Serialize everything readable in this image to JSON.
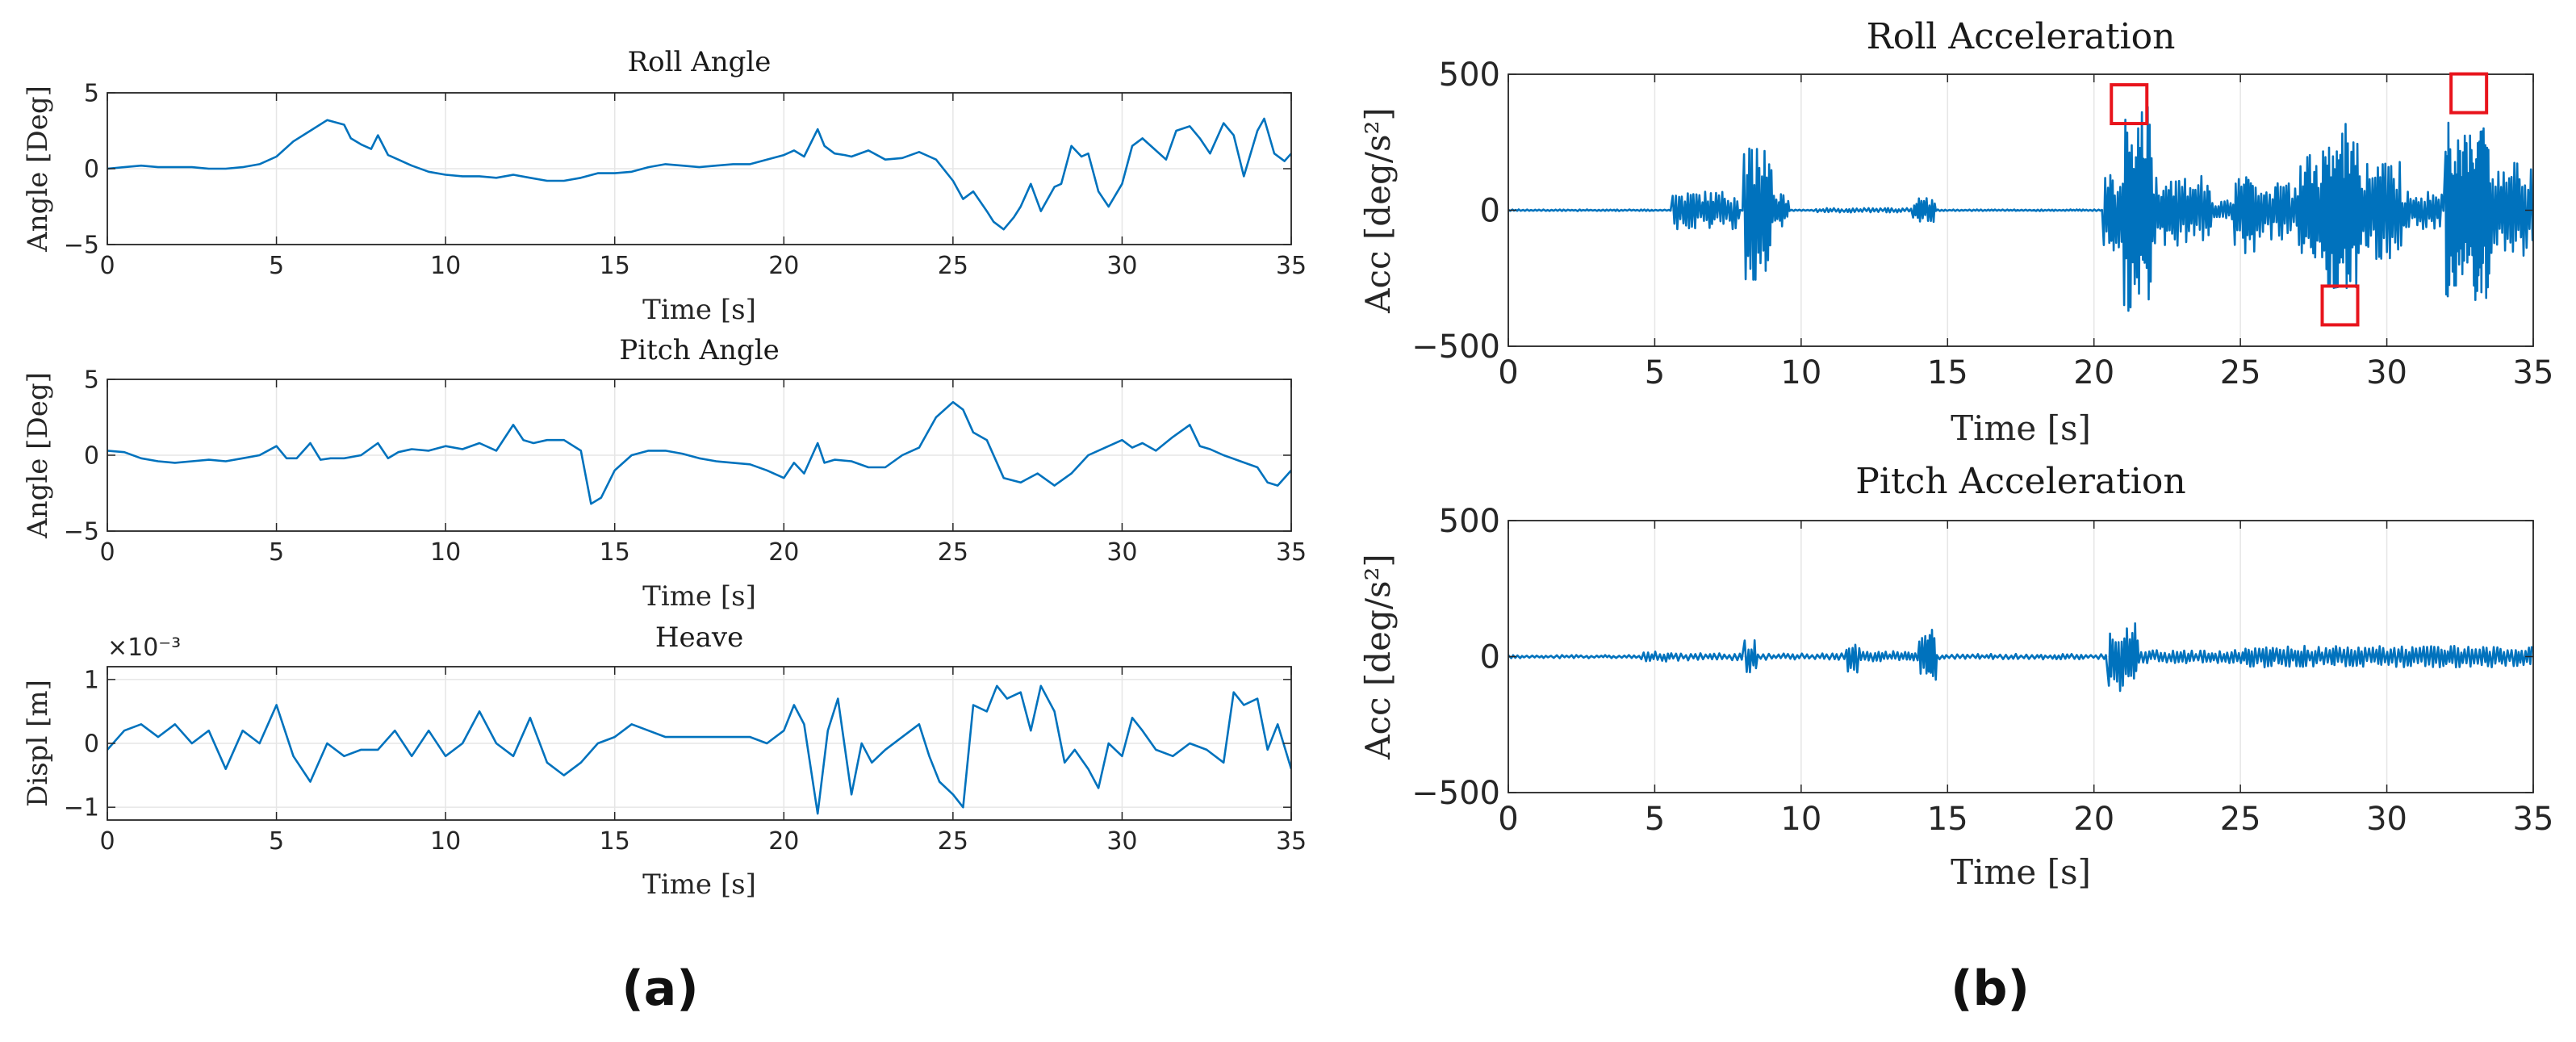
{
  "panel_labels": [
    "(a)",
    "(b)"
  ],
  "colors": {
    "line": "#0072BD",
    "axis": "#262626",
    "grid": "#e6e6e6",
    "marker": "#e8141c"
  },
  "chart_data": [
    {
      "id": "roll-angle",
      "type": "line",
      "title": "Roll Angle",
      "xlabel": "Time [s]",
      "ylabel": "Angle [Deg]",
      "xlim": [
        0,
        35
      ],
      "ylim": [
        -5,
        5
      ],
      "xticks": [
        0,
        5,
        10,
        15,
        20,
        25,
        30,
        35
      ],
      "yticks": [
        -5,
        0,
        5
      ],
      "grid": true,
      "series": [
        {
          "x": [
            0,
            0.5,
            1,
            1.5,
            2,
            2.5,
            3,
            3.5,
            4,
            4.5,
            5,
            5.5,
            6,
            6.5,
            7,
            7.2,
            7.5,
            7.8,
            8,
            8.3,
            8.6,
            9,
            9.5,
            10,
            10.5,
            11,
            11.5,
            12,
            12.5,
            13,
            13.5,
            14,
            14.5,
            15,
            15.5,
            16,
            16.5,
            17,
            17.5,
            18,
            18.5,
            19,
            19.5,
            20,
            20.3,
            20.6,
            21,
            21.2,
            21.5,
            21.8,
            22,
            22.5,
            23,
            23.5,
            24,
            24.5,
            25,
            25.3,
            25.6,
            26,
            26.2,
            26.5,
            26.8,
            27,
            27.3,
            27.6,
            28,
            28.2,
            28.5,
            28.8,
            29,
            29.3,
            29.6,
            30,
            30.3,
            30.6,
            31,
            31.3,
            31.6,
            32,
            32.3,
            32.6,
            33,
            33.3,
            33.6,
            34,
            34.2,
            34.5,
            34.8,
            35
          ],
          "y": [
            0,
            0.1,
            0.2,
            0.1,
            0.1,
            0.1,
            0.0,
            0.0,
            0.1,
            0.3,
            0.8,
            1.8,
            2.5,
            3.2,
            2.9,
            2.0,
            1.6,
            1.3,
            2.2,
            0.9,
            0.6,
            0.2,
            -0.2,
            -0.4,
            -0.5,
            -0.5,
            -0.6,
            -0.4,
            -0.6,
            -0.8,
            -0.8,
            -0.6,
            -0.3,
            -0.3,
            -0.2,
            0.1,
            0.3,
            0.2,
            0.1,
            0.2,
            0.3,
            0.3,
            0.6,
            0.9,
            1.2,
            0.8,
            2.6,
            1.5,
            1.0,
            0.9,
            0.8,
            1.2,
            0.6,
            0.7,
            1.1,
            0.6,
            -0.8,
            -2.0,
            -1.5,
            -2.8,
            -3.5,
            -4.0,
            -3.2,
            -2.5,
            -1.0,
            -2.8,
            -1.2,
            -1.0,
            1.5,
            0.8,
            1.0,
            -1.5,
            -2.5,
            -1.0,
            1.5,
            2.0,
            1.2,
            0.6,
            2.5,
            2.8,
            2.0,
            1.0,
            3.0,
            2.2,
            -0.5,
            2.5,
            3.3,
            1.0,
            0.5,
            1.0
          ]
        }
      ]
    },
    {
      "id": "pitch-angle",
      "type": "line",
      "title": "Pitch Angle",
      "xlabel": "Time [s]",
      "ylabel": "Angle [Deg]",
      "xlim": [
        0,
        35
      ],
      "ylim": [
        -5,
        5
      ],
      "xticks": [
        0,
        5,
        10,
        15,
        20,
        25,
        30,
        35
      ],
      "yticks": [
        -5,
        0,
        5
      ],
      "grid": true,
      "series": [
        {
          "x": [
            0,
            0.5,
            1,
            1.5,
            2,
            2.5,
            3,
            3.5,
            4,
            4.5,
            5,
            5.3,
            5.6,
            6,
            6.3,
            6.6,
            7,
            7.5,
            8,
            8.3,
            8.6,
            9,
            9.5,
            10,
            10.5,
            11,
            11.5,
            12,
            12.3,
            12.6,
            13,
            13.5,
            14,
            14.3,
            14.6,
            15,
            15.5,
            16,
            16.5,
            17,
            17.5,
            18,
            18.5,
            19,
            19.5,
            20,
            20.3,
            20.6,
            21,
            21.2,
            21.5,
            22,
            22.5,
            23,
            23.5,
            24,
            24.5,
            25,
            25.3,
            25.6,
            26,
            26.5,
            27,
            27.5,
            28,
            28.5,
            29,
            29.5,
            30,
            30.3,
            30.6,
            31,
            31.5,
            32,
            32.3,
            32.6,
            33,
            33.5,
            34,
            34.3,
            34.6,
            35
          ],
          "y": [
            0.3,
            0.2,
            -0.2,
            -0.4,
            -0.5,
            -0.4,
            -0.3,
            -0.4,
            -0.2,
            0.0,
            0.6,
            -0.2,
            -0.2,
            0.8,
            -0.3,
            -0.2,
            -0.2,
            0.0,
            0.8,
            -0.2,
            0.2,
            0.4,
            0.3,
            0.6,
            0.4,
            0.8,
            0.3,
            2.0,
            1.0,
            0.8,
            1.0,
            1.0,
            0.3,
            -3.2,
            -2.8,
            -1.0,
            0.0,
            0.3,
            0.3,
            0.1,
            -0.2,
            -0.4,
            -0.5,
            -0.6,
            -1.0,
            -1.5,
            -0.5,
            -1.2,
            0.8,
            -0.5,
            -0.3,
            -0.4,
            -0.8,
            -0.8,
            0.0,
            0.5,
            2.5,
            3.5,
            3.0,
            1.5,
            1.0,
            -1.5,
            -1.8,
            -1.2,
            -2.0,
            -1.2,
            0.0,
            0.5,
            1.0,
            0.5,
            0.8,
            0.3,
            1.2,
            2.0,
            0.6,
            0.4,
            0.0,
            -0.4,
            -0.8,
            -1.8,
            -2.0,
            -1.0
          ]
        }
      ]
    },
    {
      "id": "heave",
      "type": "line",
      "title": "Heave",
      "xlabel": "Time [s]",
      "ylabel": "Displ [m]",
      "exponent": "×10⁻³",
      "xlim": [
        0,
        35
      ],
      "ylim": [
        -1.2,
        1.2
      ],
      "xticks": [
        0,
        5,
        10,
        15,
        20,
        25,
        30,
        35
      ],
      "yticks": [
        -1,
        0,
        1
      ],
      "grid": true,
      "series": [
        {
          "x": [
            0,
            0.5,
            1,
            1.5,
            2,
            2.5,
            3,
            3.5,
            4,
            4.5,
            5,
            5.5,
            6,
            6.5,
            7,
            7.5,
            8,
            8.5,
            9,
            9.5,
            10,
            10.5,
            11,
            11.5,
            12,
            12.5,
            13,
            13.5,
            14,
            14.5,
            15,
            15.5,
            16,
            16.5,
            17,
            17.5,
            18,
            18.5,
            19,
            19.5,
            20,
            20.3,
            20.6,
            21,
            21.3,
            21.6,
            22,
            22.3,
            22.6,
            23,
            23.5,
            24,
            24.3,
            24.6,
            25,
            25.3,
            25.6,
            26,
            26.3,
            26.6,
            27,
            27.3,
            27.6,
            28,
            28.3,
            28.6,
            29,
            29.3,
            29.6,
            30,
            30.3,
            30.6,
            31,
            31.5,
            32,
            32.5,
            33,
            33.3,
            33.6,
            34,
            34.3,
            34.6,
            35
          ],
          "y": [
            -0.1,
            0.2,
            0.3,
            0.1,
            0.3,
            0.0,
            0.2,
            -0.4,
            0.2,
            0.0,
            0.6,
            -0.2,
            -0.6,
            0.0,
            -0.2,
            -0.1,
            -0.1,
            0.2,
            -0.2,
            0.2,
            -0.2,
            0.0,
            0.5,
            0.0,
            -0.2,
            0.4,
            -0.3,
            -0.5,
            -0.3,
            0.0,
            0.1,
            0.3,
            0.2,
            0.1,
            0.1,
            0.1,
            0.1,
            0.1,
            0.1,
            0.0,
            0.2,
            0.6,
            0.3,
            -1.1,
            0.2,
            0.7,
            -0.8,
            0.0,
            -0.3,
            -0.1,
            0.1,
            0.3,
            -0.2,
            -0.6,
            -0.8,
            -1.0,
            0.6,
            0.5,
            0.9,
            0.7,
            0.8,
            0.2,
            0.9,
            0.5,
            -0.3,
            -0.1,
            -0.4,
            -0.7,
            0.0,
            -0.2,
            0.4,
            0.2,
            -0.1,
            -0.2,
            0.0,
            -0.1,
            -0.3,
            0.8,
            0.6,
            0.7,
            -0.1,
            0.3,
            -0.4
          ]
        }
      ]
    },
    {
      "id": "roll-acceleration",
      "type": "line",
      "title": "Roll Acceleration",
      "xlabel": "Time [s]",
      "ylabel": "Acc [deg/s²]",
      "xlim": [
        0,
        35
      ],
      "ylim": [
        -500,
        500
      ],
      "xticks": [
        0,
        5,
        10,
        15,
        20,
        25,
        30,
        35
      ],
      "yticks": [
        -500,
        0,
        500
      ],
      "grid": true,
      "bursts": [
        [
          5.6,
          7.9,
          70,
          0.09
        ],
        [
          8.0,
          9.0,
          260,
          0.08
        ],
        [
          9.0,
          9.6,
          60,
          0.08
        ],
        [
          10.4,
          13.8,
          8,
          0.12
        ],
        [
          13.8,
          14.6,
          45,
          0.08
        ],
        [
          20.3,
          21.0,
          150,
          0.08
        ],
        [
          21.0,
          22.0,
          380,
          0.06
        ],
        [
          22.0,
          24.0,
          130,
          0.08
        ],
        [
          24.0,
          24.8,
          40,
          0.09
        ],
        [
          24.8,
          25.5,
          160,
          0.08
        ],
        [
          25.5,
          27.0,
          110,
          0.09
        ],
        [
          27.0,
          28.0,
          230,
          0.07
        ],
        [
          28.0,
          29.0,
          320,
          0.06
        ],
        [
          29.0,
          30.5,
          180,
          0.08
        ],
        [
          30.5,
          31.9,
          70,
          0.09
        ],
        [
          32.0,
          33.5,
          330,
          0.05
        ],
        [
          33.5,
          35.0,
          180,
          0.08
        ]
      ],
      "highlight_boxes": [
        [
          21.2,
          390
        ],
        [
          28.4,
          -350
        ],
        [
          32.8,
          430
        ]
      ]
    },
    {
      "id": "pitch-acceleration",
      "type": "line",
      "title": "Pitch Acceleration",
      "xlabel": "Time [s]",
      "ylabel": "Acc [deg/s²]",
      "xlim": [
        0,
        35
      ],
      "ylim": [
        -500,
        500
      ],
      "xticks": [
        0,
        5,
        10,
        15,
        20,
        25,
        30,
        35
      ],
      "yticks": [
        -500,
        0,
        500
      ],
      "grid": true,
      "bursts": [
        [
          0.0,
          4.5,
          6,
          0.15
        ],
        [
          4.5,
          5.5,
          20,
          0.12
        ],
        [
          5.5,
          8.0,
          15,
          0.15
        ],
        [
          8.0,
          8.5,
          60,
          0.1
        ],
        [
          8.5,
          11.5,
          12,
          0.15
        ],
        [
          11.5,
          12.0,
          70,
          0.1
        ],
        [
          12.0,
          14.0,
          20,
          0.12
        ],
        [
          14.0,
          14.6,
          110,
          0.08
        ],
        [
          14.6,
          20.5,
          10,
          0.15
        ],
        [
          20.5,
          21.5,
          130,
          0.08
        ],
        [
          21.5,
          25.0,
          25,
          0.12
        ],
        [
          25.0,
          35.0,
          40,
          0.11
        ]
      ]
    }
  ]
}
